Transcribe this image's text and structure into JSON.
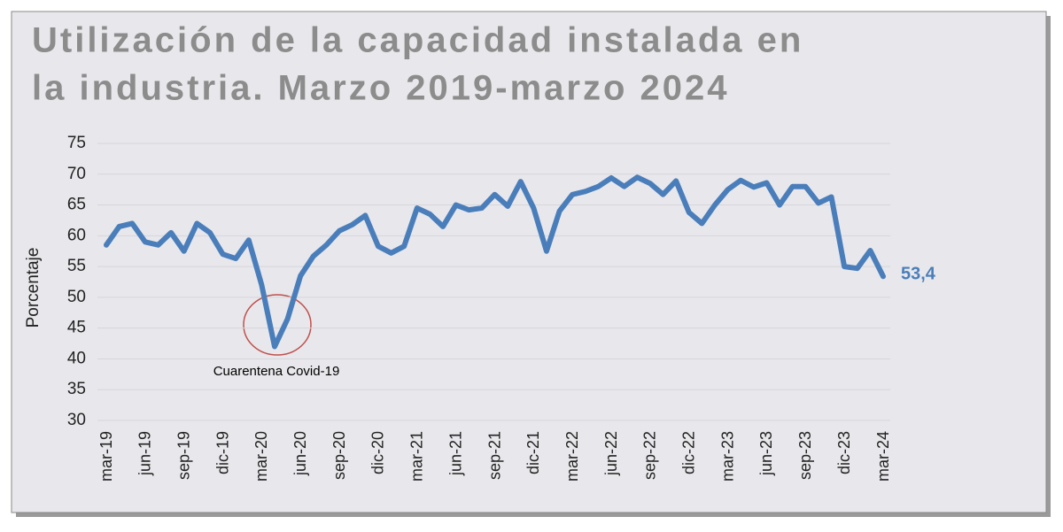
{
  "chart_data": {
    "type": "line",
    "title": "Utilización de la capacidad instalada en la industria. Marzo 2019-marzo 2024",
    "y_label": "Porcentaje",
    "annotation": "Cuarentena Covid-19",
    "categories": [
      "mar-19",
      null,
      null,
      "jun-19",
      null,
      null,
      "sep-19",
      null,
      null,
      "dic-19",
      null,
      null,
      "mar-20",
      null,
      null,
      "jun-20",
      null,
      null,
      "sep-20",
      null,
      null,
      "dic-20",
      null,
      null,
      "mar-21",
      null,
      null,
      "jun-21",
      null,
      null,
      "sep-21",
      null,
      null,
      "dic-21",
      null,
      null,
      "mar-22",
      null,
      null,
      "jun-22",
      null,
      null,
      "sep-22",
      null,
      null,
      "dic-22",
      null,
      null,
      "mar-23",
      null,
      null,
      "jun-23",
      null,
      null,
      "sep-23",
      null,
      null,
      "dic-23",
      null,
      null,
      "mar-24"
    ],
    "series": [
      {
        "color": "#4a7ebb",
        "values": [
          58.5,
          61.5,
          62,
          59,
          58.5,
          60.5,
          57.5,
          62,
          60.5,
          57,
          56.3,
          59.3,
          52,
          42,
          46.5,
          53.5,
          56.7,
          58.5,
          60.8,
          61.8,
          63.3,
          58.3,
          57.2,
          58.3,
          64.5,
          63.5,
          61.5,
          65,
          64.2,
          64.5,
          66.7,
          64.8,
          68.8,
          64.5,
          57.5,
          64,
          66.7,
          67.2,
          68,
          69.4,
          68,
          69.5,
          68.5,
          66.7,
          68.9,
          63.8,
          62,
          65,
          67.5,
          69,
          67.9,
          68.6,
          65,
          68,
          68,
          65.3,
          66.3,
          55,
          54.7,
          57.6,
          53.4
        ],
        "value_labels": [
          null,
          null,
          null,
          null,
          null,
          null,
          null,
          null,
          null,
          null,
          null,
          null,
          null,
          null,
          null,
          null,
          null,
          null,
          null,
          null,
          null,
          null,
          null,
          null,
          null,
          null,
          null,
          null,
          null,
          null,
          null,
          null,
          null,
          null,
          null,
          null,
          null,
          null,
          null,
          null,
          null,
          null,
          null,
          null,
          null,
          null,
          null,
          null,
          null,
          null,
          null,
          null,
          null,
          null,
          null,
          null,
          null,
          null,
          null,
          null,
          "53,4"
        ]
      }
    ],
    "ylim": [
      30,
      75
    ],
    "yticks": [
      30,
      35,
      40,
      45,
      50,
      55,
      60,
      65,
      70,
      75
    ],
    "grid": true
  }
}
